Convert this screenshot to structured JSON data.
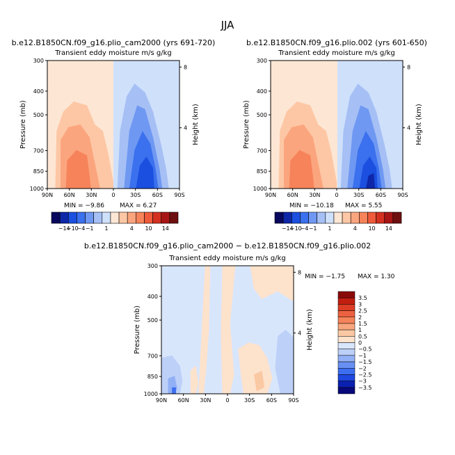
{
  "figure": {
    "season": "JJA",
    "diff_title": "b.e12.B1850CN.f09_g16.plio_cam2000 − b.e12.B1850CN.f09_g16.plio.002"
  },
  "colors": {
    "abs_scale": [
      "#08085e",
      "#0d27a8",
      "#1a4fe0",
      "#3b70ee",
      "#6f98f2",
      "#a6c0f5",
      "#cfe0fb",
      "#fde6d4",
      "#fdc7a5",
      "#fba57e",
      "#f6835a",
      "#ee5a3a",
      "#d43020",
      "#a81515",
      "#6e0f0f"
    ],
    "diff_scale": [
      "#08087a",
      "#0a20b0",
      "#1e48e0",
      "#3c6ef0",
      "#6890f2",
      "#92b0f5",
      "#bcd0f8",
      "#d8e6fc",
      "#fde2cc",
      "#fbc8a4",
      "#f8a67d",
      "#f4845a",
      "#ec6240",
      "#dd3d24",
      "#c21e10",
      "#8a0a0a"
    ]
  },
  "labels": {
    "pressure_axis": "Pressure (mb)",
    "height_axis": "Height (km)",
    "subtitle": "Transient eddy moisture m/s g/kg"
  },
  "chart_data": [
    {
      "type": "heatmap",
      "title": "b.e12.B1850CN.f09_g16.plio_cam2000 (yrs 691-720)",
      "subtitle": "Transient eddy moisture m/s g/kg",
      "xlabel": "",
      "ylabel": "Pressure (mb)",
      "ylabel_right": "Height (km)",
      "x_ticks": [
        "90N",
        "60N",
        "30N",
        "0",
        "30S",
        "60S",
        "90S"
      ],
      "y_ticks": [
        300,
        400,
        500,
        700,
        850,
        1000
      ],
      "right_ticks": [
        8,
        4
      ],
      "min_label": "MIN = −9.86",
      "max_label": "MAX = 6.27",
      "min": -9.86,
      "max": 6.27,
      "colorbar_labels": [
        "−14",
        "−10",
        "−4",
        "−1",
        "1",
        "4",
        "10",
        "14"
      ]
    },
    {
      "type": "heatmap",
      "title": "b.e12.B1850CN.f09_g16.plio.002 (yrs 601-650)",
      "subtitle": "Transient eddy moisture m/s g/kg",
      "xlabel": "",
      "ylabel": "Pressure (mb)",
      "ylabel_right": "Height (km)",
      "x_ticks": [
        "90N",
        "60N",
        "30N",
        "0",
        "30S",
        "60S",
        "90S"
      ],
      "y_ticks": [
        300,
        400,
        500,
        700,
        850,
        1000
      ],
      "right_ticks": [
        8,
        4
      ],
      "min_label": "MIN = −10.18",
      "max_label": "MAX = 5.55",
      "min": -10.18,
      "max": 5.55,
      "colorbar_labels": [
        "−14",
        "−10",
        "−4",
        "−1",
        "1",
        "4",
        "10",
        "14"
      ]
    },
    {
      "type": "heatmap",
      "title": "b.e12.B1850CN.f09_g16.plio_cam2000 − b.e12.B1850CN.f09_g16.plio.002",
      "subtitle": "Transient eddy moisture m/s g/kg",
      "xlabel": "",
      "ylabel": "Pressure (mb)",
      "ylabel_right": "Height (km)",
      "x_ticks": [
        "90N",
        "60N",
        "30N",
        "0",
        "30S",
        "60S",
        "90S"
      ],
      "y_ticks": [
        300,
        400,
        500,
        700,
        850,
        1000
      ],
      "right_ticks": [
        8,
        4
      ],
      "min_label": "MIN = −1.75",
      "max_label": "MAX = 1.30",
      "min": -1.75,
      "max": 1.3,
      "colorbar_labels": [
        "3.5",
        "3",
        "2.5",
        "2",
        "1.5",
        "1",
        "0.5",
        "0",
        "−0.5",
        "−1",
        "−1.5",
        "−2",
        "−2.5",
        "−3",
        "−3.5"
      ]
    }
  ]
}
